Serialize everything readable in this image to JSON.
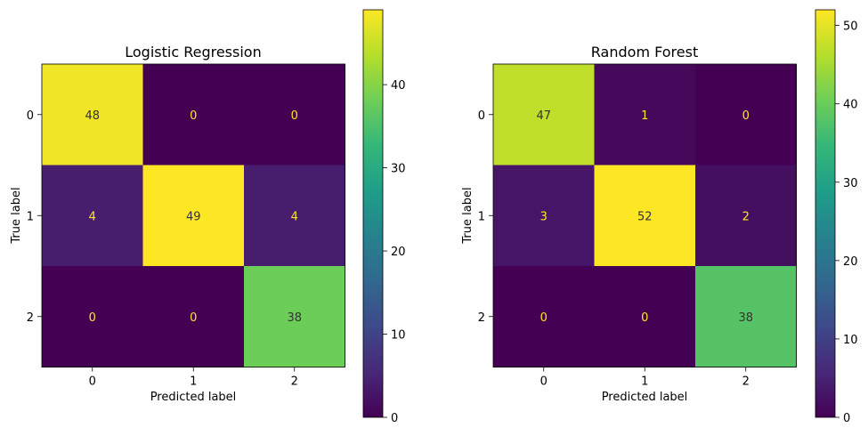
{
  "chart_data": [
    {
      "type": "heatmap",
      "title": "Logistic Regression",
      "xlabel": "Predicted label",
      "ylabel": "True label",
      "x_categories": [
        "0",
        "1",
        "2"
      ],
      "y_categories": [
        "0",
        "1",
        "2"
      ],
      "values": [
        [
          48,
          0,
          0
        ],
        [
          4,
          49,
          4
        ],
        [
          0,
          0,
          38
        ]
      ],
      "colorbar": {
        "min": 0,
        "max": 49,
        "ticks": [
          0,
          10,
          20,
          30,
          40
        ]
      },
      "colormap": "viridis",
      "grid": false,
      "text_colors": {
        "light_cell": "#333333",
        "dark_cell": "#fde725"
      }
    },
    {
      "type": "heatmap",
      "title": "Random Forest",
      "xlabel": "Predicted label",
      "ylabel": "True label",
      "x_categories": [
        "0",
        "1",
        "2"
      ],
      "y_categories": [
        "0",
        "1",
        "2"
      ],
      "values": [
        [
          47,
          1,
          0
        ],
        [
          3,
          52,
          2
        ],
        [
          0,
          0,
          38
        ]
      ],
      "colorbar": {
        "min": 0,
        "max": 52,
        "ticks": [
          0,
          10,
          20,
          30,
          40,
          50
        ]
      },
      "colormap": "viridis",
      "grid": false,
      "text_colors": {
        "light_cell": "#333333",
        "dark_cell": "#fde725"
      }
    }
  ]
}
